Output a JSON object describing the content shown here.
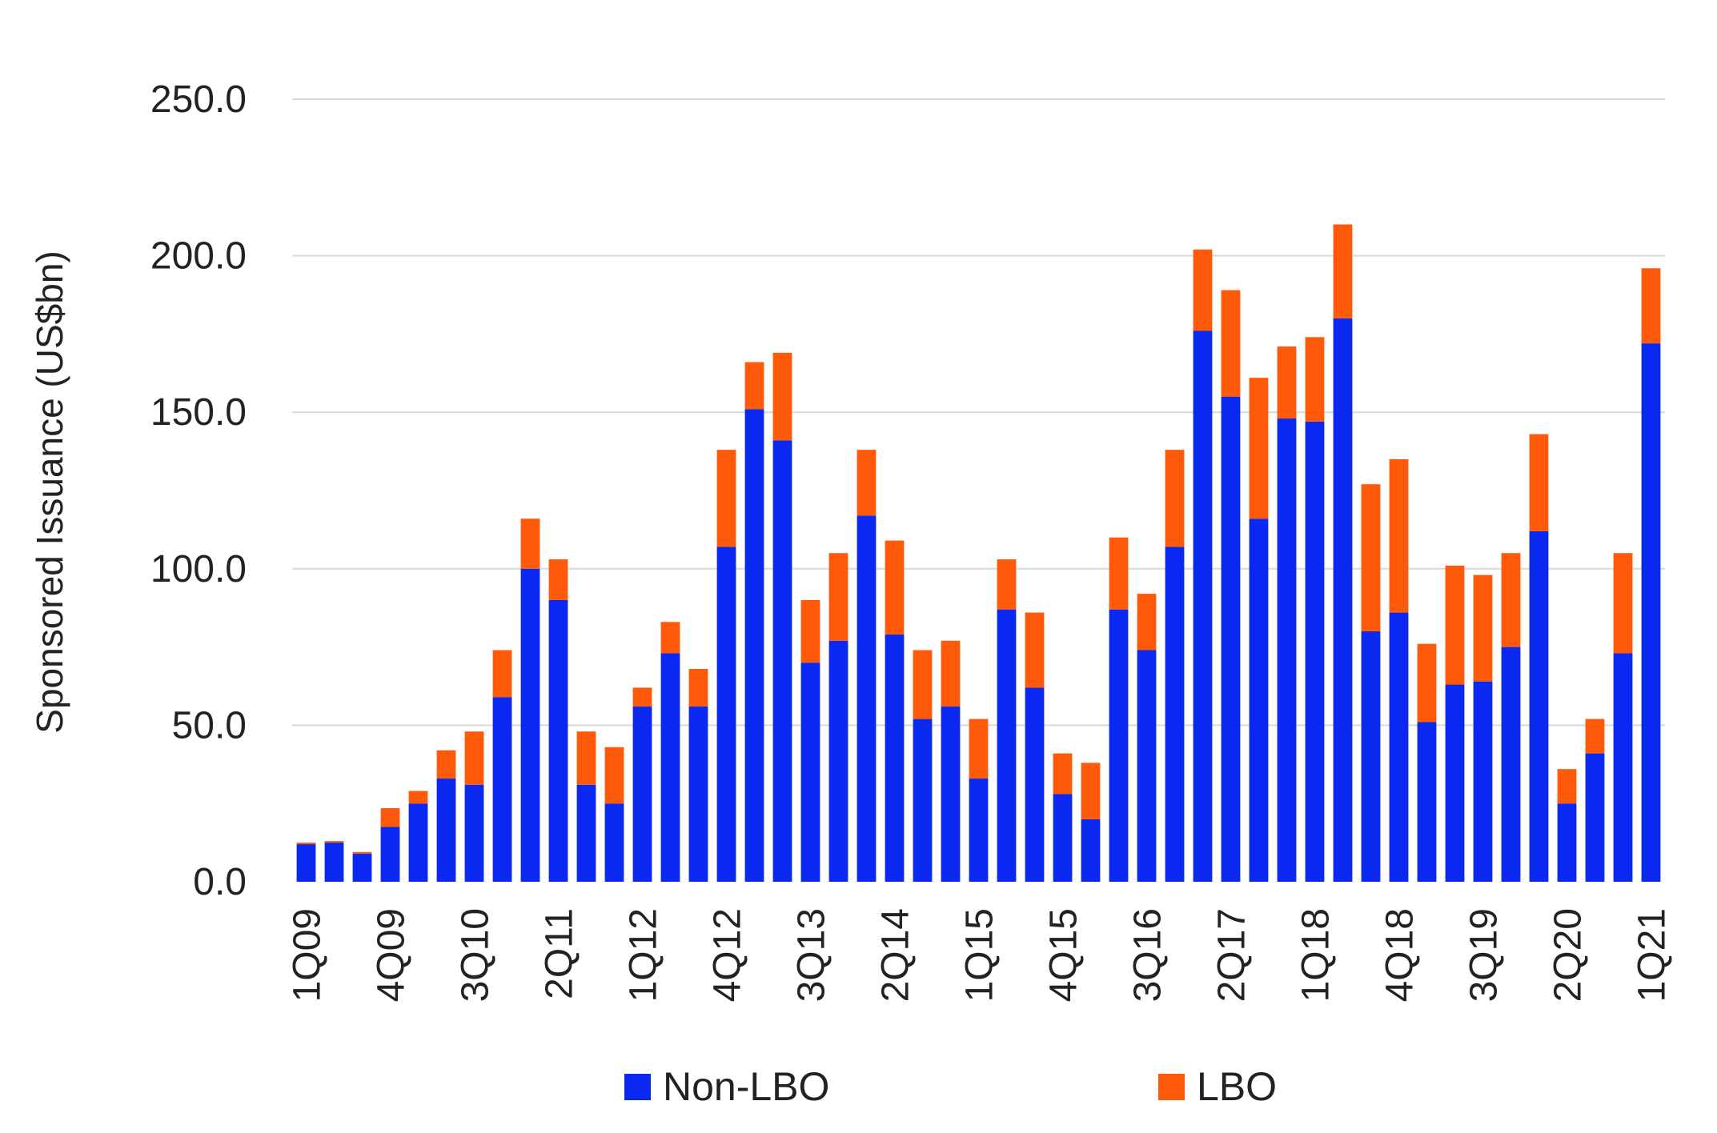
{
  "chart_data": {
    "type": "bar",
    "stacked": true,
    "title": "",
    "xlabel": "",
    "ylabel": "Sponsored Issuance (US$bn)",
    "ylim": [
      0,
      250
    ],
    "yticks": [
      0,
      50,
      100,
      150,
      200,
      250
    ],
    "ytick_labels": [
      "0.0",
      "50.0",
      "100.0",
      "150.0",
      "200.0",
      "250.0"
    ],
    "grid": true,
    "legend_position": "bottom",
    "categories": [
      "1Q09",
      "2Q09",
      "3Q09",
      "4Q09",
      "1Q10",
      "2Q10",
      "3Q10",
      "4Q10",
      "1Q11",
      "2Q11",
      "3Q11",
      "4Q11",
      "1Q12",
      "2Q12",
      "3Q12",
      "4Q12",
      "1Q13",
      "2Q13",
      "3Q13",
      "4Q13",
      "1Q14",
      "2Q14",
      "3Q14",
      "4Q14",
      "1Q15",
      "2Q15",
      "3Q15",
      "4Q15",
      "1Q16",
      "2Q16",
      "3Q16",
      "4Q16",
      "1Q17",
      "2Q17",
      "3Q17",
      "4Q17",
      "1Q18",
      "2Q18",
      "3Q18",
      "4Q18",
      "1Q19",
      "2Q19",
      "3Q19",
      "4Q19",
      "1Q20",
      "2Q20",
      "3Q20",
      "4Q20",
      "1Q21"
    ],
    "xtick_labels": [
      "1Q09",
      "4Q09",
      "3Q10",
      "2Q11",
      "1Q12",
      "4Q12",
      "3Q13",
      "2Q14",
      "1Q15",
      "4Q15",
      "3Q16",
      "2Q17",
      "1Q18",
      "4Q18",
      "3Q19",
      "2Q20",
      "1Q21"
    ],
    "series": [
      {
        "name": "Non-LBO",
        "color": "#0A28F0",
        "values": [
          12,
          12.5,
          9,
          17.5,
          25,
          33,
          31,
          59,
          100,
          90,
          31,
          25,
          56,
          73,
          56,
          107,
          151,
          141,
          70,
          77,
          117,
          79,
          52,
          56,
          33,
          87,
          62,
          28,
          20,
          87,
          74,
          107,
          176,
          155,
          116,
          148,
          147,
          180,
          80,
          86,
          51,
          63,
          64,
          75,
          112,
          25,
          41,
          73,
          172
        ]
      },
      {
        "name": "LBO",
        "color": "#FF5A0A",
        "values": [
          0.5,
          0.5,
          0.5,
          6,
          4,
          9,
          17,
          15,
          16,
          13,
          17,
          18,
          6,
          10,
          12,
          31,
          15,
          28,
          20,
          28,
          21,
          30,
          22,
          21,
          19,
          16,
          24,
          13,
          18,
          23,
          18,
          31,
          26,
          34,
          45,
          23,
          27,
          30,
          47,
          49,
          25,
          38,
          34,
          30,
          31,
          11,
          11,
          32,
          24
        ]
      }
    ]
  }
}
